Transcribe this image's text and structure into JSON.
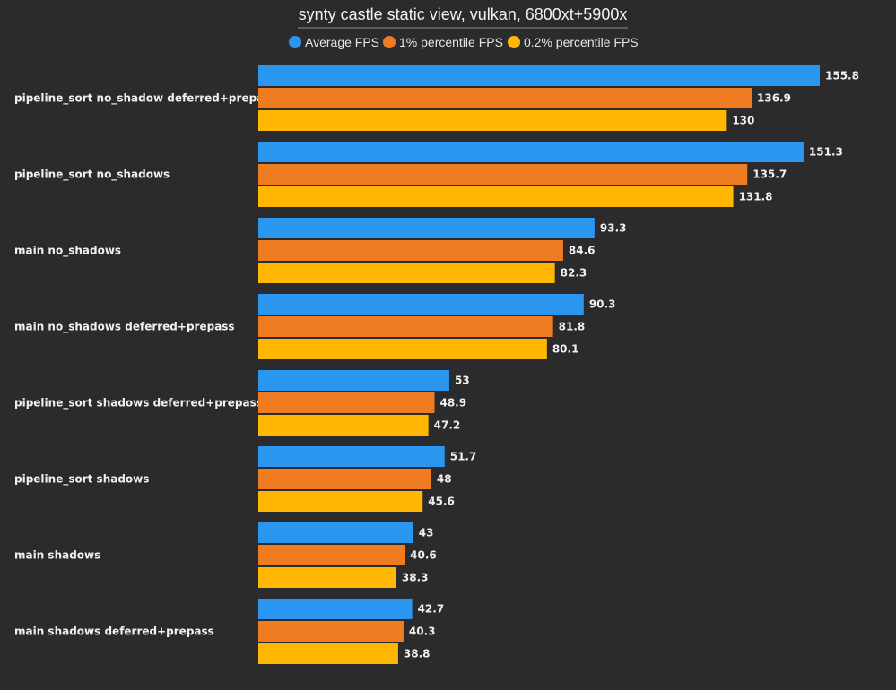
{
  "chart_data": {
    "type": "bar",
    "orientation": "horizontal",
    "title": "synty castle static view, vulkan, 6800xt+5900x",
    "categories": [
      "pipeline_sort no_shadow deferred+prepass",
      "pipeline_sort no_shadows",
      "main no_shadows",
      "main no_shadows deferred+prepass",
      "pipeline_sort shadows deferred+prepass",
      "pipeline_sort shadows",
      "main shadows",
      "main shadows deferred+prepass"
    ],
    "series": [
      {
        "name": "Average FPS",
        "color": "#2b96f0",
        "values": [
          155.8,
          151.3,
          93.3,
          90.3,
          53,
          51.7,
          43,
          42.7
        ]
      },
      {
        "name": "1% percentile FPS",
        "color": "#f07c22",
        "values": [
          136.9,
          135.7,
          84.6,
          81.8,
          48.9,
          48,
          40.6,
          40.3
        ]
      },
      {
        "name": "0.2% percentile FPS",
        "color": "#ffb703",
        "values": [
          130,
          131.8,
          82.3,
          80.1,
          47.2,
          45.6,
          38.3,
          38.8
        ]
      }
    ],
    "xlim": [
      0,
      155.8
    ],
    "legend": "top-center",
    "grid": false,
    "data_labels": true
  }
}
